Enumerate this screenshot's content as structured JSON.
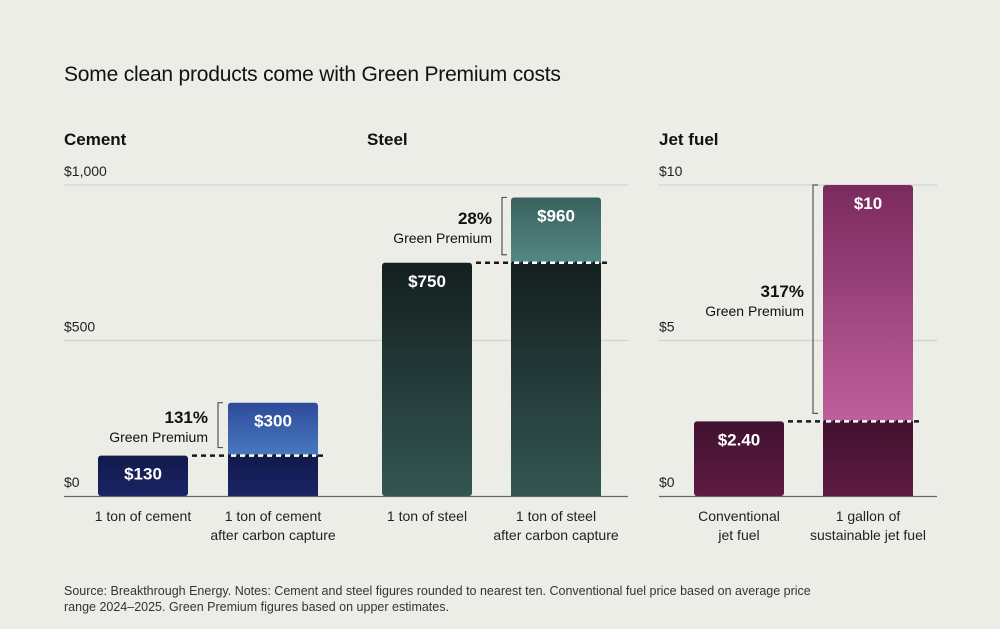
{
  "title": "Some clean products come with Green Premium costs",
  "footer": "Source: Breakthrough Energy. Notes: Cement and steel figures rounded to nearest ten. Conventional fuel price based on average price range 2024–2025. Green Premium figures based on upper estimates.",
  "sections": {
    "cement": "Cement",
    "steel": "Steel",
    "jet_fuel": "Jet fuel"
  },
  "chart_data": [
    {
      "type": "bar",
      "title": "Cement",
      "unit": "USD per ton",
      "ylim": [
        0,
        1000
      ],
      "yticks": [
        {
          "value": 0,
          "label": "$0"
        },
        {
          "value": 500,
          "label": "$500"
        },
        {
          "value": 1000,
          "label": "$1,000"
        }
      ],
      "grid": true,
      "categories": [
        [
          "1 ton of cement"
        ],
        [
          "1 ton of cement",
          "after carbon capture"
        ]
      ],
      "values": [
        130,
        300
      ],
      "value_labels": [
        "$130",
        "$300"
      ],
      "baseline_value": 130,
      "premium": {
        "pct": "131%",
        "label": "Green Premium"
      },
      "colors": {
        "base_top": "#111a4a",
        "base_bottom": "#1b2466",
        "prem_top": "#2e4a9a",
        "prem_bottom": "#4a7cc4"
      }
    },
    {
      "type": "bar",
      "title": "Steel",
      "unit": "USD per ton",
      "ylim": [
        0,
        1000
      ],
      "yticks": [
        {
          "value": 0,
          "label": "$0"
        },
        {
          "value": 500,
          "label": "$500"
        },
        {
          "value": 1000,
          "label": "$1,000"
        }
      ],
      "grid": true,
      "categories": [
        [
          "1 ton of steel"
        ],
        [
          "1 ton of steel",
          "after carbon capture"
        ]
      ],
      "values": [
        750,
        960
      ],
      "value_labels": [
        "$750",
        "$960"
      ],
      "baseline_value": 750,
      "premium": {
        "pct": "28%",
        "label": "Green Premium"
      },
      "colors": {
        "base_top": "#141f1f",
        "base_bottom": "#335652",
        "prem_top": "#3a615e",
        "prem_bottom": "#548a86"
      }
    },
    {
      "type": "bar",
      "title": "Jet fuel",
      "unit": "USD per gallon",
      "ylim": [
        0,
        10
      ],
      "yticks": [
        {
          "value": 0,
          "label": "$0"
        },
        {
          "value": 5,
          "label": "$5"
        },
        {
          "value": 10,
          "label": "$10"
        }
      ],
      "grid": true,
      "categories": [
        [
          "Conventional",
          "jet fuel"
        ],
        [
          "1 gallon of",
          "sustainable jet fuel"
        ]
      ],
      "values": [
        2.4,
        10
      ],
      "value_labels": [
        "$2.40",
        "$10"
      ],
      "baseline_value": 2.4,
      "premium": {
        "pct": "317%",
        "label": "Green Premium"
      },
      "colors": {
        "base_top": "#42122f",
        "base_bottom": "#5e1b43",
        "prem_top": "#7b2a5e",
        "prem_bottom": "#c0609e"
      }
    }
  ]
}
